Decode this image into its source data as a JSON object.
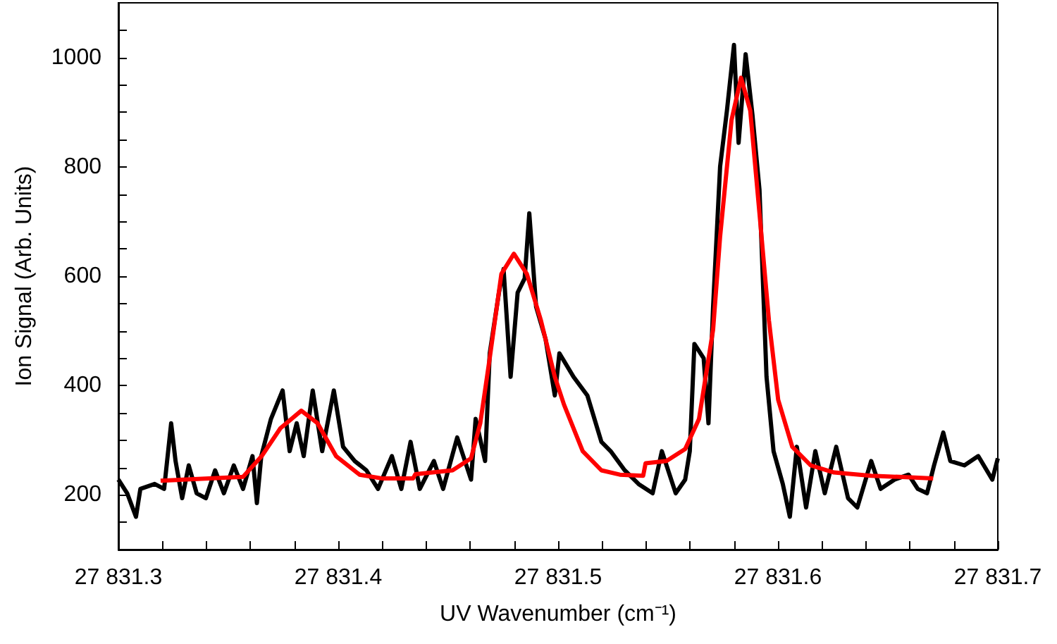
{
  "chart_data": {
    "type": "line",
    "xlabel": "UV Wavenumber (cm⁻¹)",
    "ylabel": "Ion Signal (Arb. Units)",
    "xlim": [
      27831.3,
      27831.7
    ],
    "ylim": [
      100,
      1100
    ],
    "xticks": [
      {
        "value": 27831.3,
        "label": "27 831.3"
      },
      {
        "value": 27831.32,
        "label": null
      },
      {
        "value": 27831.34,
        "label": null
      },
      {
        "value": 27831.36,
        "label": null
      },
      {
        "value": 27831.38,
        "label": null
      },
      {
        "value": 27831.4,
        "label": "27 831.4"
      },
      {
        "value": 27831.42,
        "label": null
      },
      {
        "value": 27831.44,
        "label": null
      },
      {
        "value": 27831.46,
        "label": null
      },
      {
        "value": 27831.48,
        "label": null
      },
      {
        "value": 27831.5,
        "label": "27 831.5"
      },
      {
        "value": 27831.52,
        "label": null
      },
      {
        "value": 27831.54,
        "label": null
      },
      {
        "value": 27831.56,
        "label": null
      },
      {
        "value": 27831.58,
        "label": null
      },
      {
        "value": 27831.6,
        "label": "27 831.6"
      },
      {
        "value": 27831.62,
        "label": null
      },
      {
        "value": 27831.64,
        "label": null
      },
      {
        "value": 27831.66,
        "label": null
      },
      {
        "value": 27831.68,
        "label": null
      },
      {
        "value": 27831.7,
        "label": "27 831.7"
      }
    ],
    "yticks": [
      {
        "value": 150,
        "label": null
      },
      200,
      {
        "value": 250,
        "label": null
      },
      {
        "value": 300,
        "label": null
      },
      {
        "value": 350,
        "label": null
      },
      400,
      {
        "value": 450,
        "label": null
      },
      {
        "value": 500,
        "label": null
      },
      {
        "value": 550,
        "label": null
      },
      600,
      {
        "value": 650,
        "label": null
      },
      {
        "value": 700,
        "label": null
      },
      {
        "value": 750,
        "label": null
      },
      800,
      {
        "value": 850,
        "label": null
      },
      {
        "value": 900,
        "label": null
      },
      {
        "value": 950,
        "label": null
      },
      1000,
      {
        "value": 1050,
        "label": null
      }
    ],
    "grid": false,
    "marker": "none",
    "line_style": "solid",
    "series": [
      {
        "color": "#000000",
        "x": [
          27831.3,
          27831.304,
          27831.308,
          27831.31,
          27831.3165,
          27831.3208,
          27831.324,
          27831.326,
          27831.329,
          27831.332,
          27831.3356,
          27831.3398,
          27831.344,
          27831.348,
          27831.3525,
          27831.3567,
          27831.361,
          27831.363,
          27831.365,
          27831.3694,
          27831.3747,
          27831.3779,
          27831.3811,
          27831.3843,
          27831.3884,
          27831.3927,
          27831.398,
          27831.4022,
          27831.4075,
          27831.4128,
          27831.4181,
          27831.4244,
          27831.4287,
          27831.4329,
          27831.4371,
          27831.4435,
          27831.4477,
          27831.4541,
          27831.4604,
          27831.4625,
          27831.4668,
          27831.4689,
          27831.4731,
          27831.4752,
          27831.4784,
          27831.4816,
          27831.4848,
          27831.4869,
          27831.49,
          27831.4943,
          27831.4985,
          27831.5006,
          27831.507,
          27831.5133,
          27831.5197,
          27831.5239,
          27831.5303,
          27831.5366,
          27831.543,
          27831.5472,
          27831.5535,
          27831.5578,
          27831.5599,
          27831.562,
          27831.5662,
          27831.5684,
          27831.5705,
          27831.5737,
          27831.5768,
          27831.58,
          27831.5821,
          27831.5853,
          27831.5884,
          27831.5916,
          27831.5948,
          27831.598,
          27831.6022,
          27831.6054,
          27831.6086,
          27831.6128,
          27831.617,
          27831.6213,
          27831.6265,
          27831.6319,
          27831.6361,
          27831.6424,
          27831.6467,
          27831.653,
          27831.6594,
          27831.6636,
          27831.6678,
          27831.671,
          27831.6752,
          27831.6784,
          27831.6848,
          27831.6911,
          27831.6975,
          27831.7
        ],
        "values": [
          228,
          203,
          160,
          211,
          220,
          211,
          331,
          262,
          194,
          254,
          203,
          194,
          245,
          203,
          254,
          211,
          271,
          185,
          271,
          339,
          391,
          280,
          331,
          271,
          391,
          280,
          391,
          288,
          262,
          245,
          211,
          271,
          211,
          297,
          211,
          262,
          211,
          305,
          228,
          339,
          262,
          459,
          570,
          613,
          416,
          570,
          596,
          715,
          544,
          485,
          382,
          459,
          416,
          382,
          297,
          280,
          245,
          220,
          203,
          280,
          203,
          228,
          280,
          476,
          450,
          331,
          544,
          801,
          903,
          1023,
          844,
          1006,
          895,
          758,
          416,
          280,
          220,
          160,
          288,
          177,
          280,
          203,
          288,
          194,
          177,
          262,
          211,
          228,
          237,
          211,
          203,
          254,
          314,
          262,
          254,
          271,
          228,
          267
        ]
      },
      {
        "color": "#ff0000",
        "x": [
          27831.3192,
          27831.3567,
          27831.3652,
          27831.3737,
          27831.3832,
          27831.3906,
          27831.399,
          27831.4097,
          27831.4202,
          27831.434,
          27831.4351,
          27831.452,
          27831.4604,
          27831.4646,
          27831.4689,
          27831.4742,
          27831.4799,
          27831.4858,
          27831.4922,
          27831.4985,
          27831.5027,
          27831.5112,
          27831.5197,
          27831.5281,
          27831.5387,
          27831.5398,
          27831.5493,
          27831.5578,
          27831.5641,
          27831.5705,
          27831.5737,
          27831.5789,
          27831.5832,
          27831.5874,
          27831.5916,
          27831.5959,
          27831.6001,
          27831.6065,
          27831.6149,
          27831.6255,
          27831.6424,
          27831.6551,
          27831.6706
        ],
        "values": [
          226,
          233,
          271,
          322,
          354,
          331,
          271,
          237,
          230,
          230,
          238,
          245,
          267,
          331,
          450,
          604,
          641,
          604,
          519,
          416,
          365,
          280,
          245,
          237,
          235,
          258,
          262,
          284,
          339,
          502,
          673,
          886,
          963,
          903,
          715,
          519,
          374,
          288,
          254,
          241,
          235,
          233,
          230
        ]
      }
    ]
  }
}
